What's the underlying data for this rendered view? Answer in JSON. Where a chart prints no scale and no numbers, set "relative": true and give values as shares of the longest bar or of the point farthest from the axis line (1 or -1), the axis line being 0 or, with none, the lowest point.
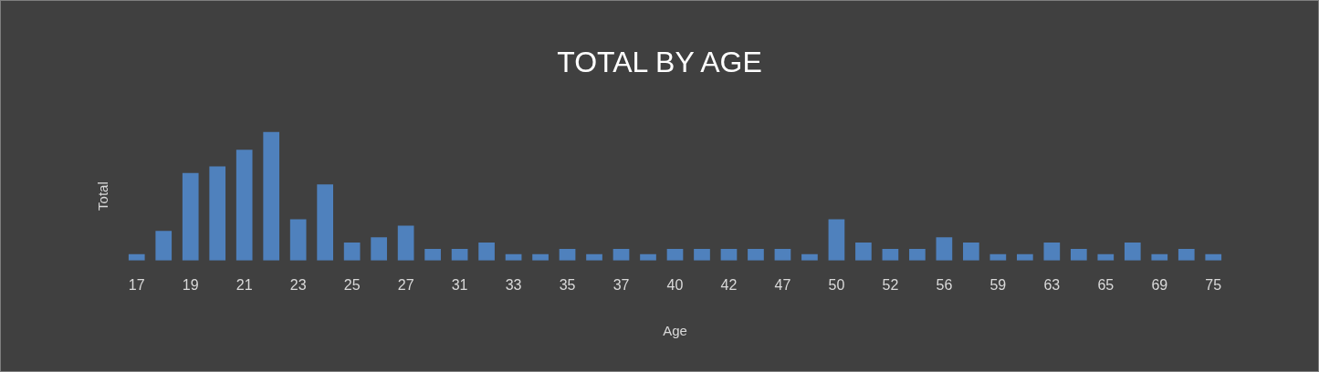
{
  "chart_data": {
    "type": "bar",
    "title": "TOTAL BY AGE",
    "xlabel": "Age",
    "ylabel": "Total",
    "relative": true,
    "color": "#4f81bd",
    "categories": [
      "17",
      null,
      "19",
      null,
      "21",
      null,
      "23",
      null,
      "25",
      null,
      "27",
      null,
      "31",
      null,
      "33",
      null,
      "35",
      null,
      "37",
      null,
      "40",
      null,
      "42",
      null,
      "47",
      null,
      "50",
      null,
      "52",
      null,
      "56",
      null,
      "59",
      null,
      "63",
      null,
      "65",
      null,
      "69",
      null,
      "75"
    ],
    "values": [
      0.05,
      0.23,
      0.68,
      0.73,
      0.86,
      1,
      0.32,
      0.59,
      0.14,
      0.18,
      0.27,
      0.09,
      0.09,
      0.14,
      0.05,
      0.05,
      0.09,
      0.05,
      0.09,
      0.05,
      0.09,
      0.09,
      0.09,
      0.09,
      0.09,
      0.05,
      0.32,
      0.14,
      0.09,
      0.09,
      0.18,
      0.14,
      0.05,
      0.05,
      0.14,
      0.09,
      0.05,
      0.14,
      0.05,
      0.09,
      0.05
    ],
    "grid": false,
    "legend": false
  }
}
